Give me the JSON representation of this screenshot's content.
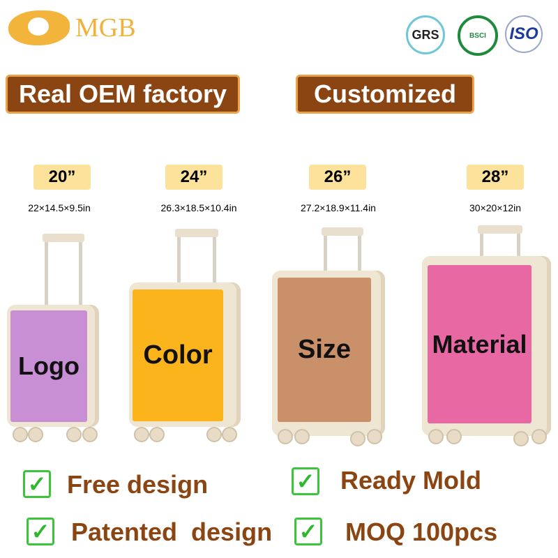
{
  "brand": {
    "name": "MGB"
  },
  "certifications": [
    "GRS",
    "BSCI",
    "ISO"
  ],
  "banners": {
    "left": "Real OEM factory",
    "right": "Customized"
  },
  "suitcases": [
    {
      "size": "20”",
      "dimensions": "22×14.5×9.5in",
      "label": "Logo",
      "color": "#c98fd4"
    },
    {
      "size": "24”",
      "dimensions": "26.3×18.5×10.4in",
      "label": "Color",
      "color": "#fbb41c"
    },
    {
      "size": "26”",
      "dimensions": "27.2×18.9×11.4in",
      "label": "Size",
      "color": "#c9906a"
    },
    {
      "size": "28”",
      "dimensions": "30×20×12in",
      "label": "Material",
      "color": "#e868a3"
    }
  ],
  "features": [
    "Free design",
    "Ready Mold",
    "Patented  design",
    "MOQ 100pcs"
  ]
}
